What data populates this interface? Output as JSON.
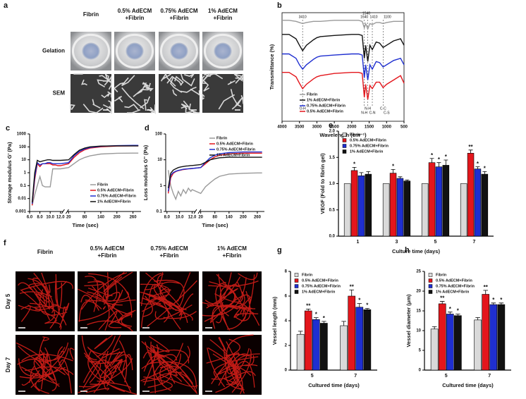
{
  "figure_a": {
    "panel_label": "a",
    "columns": [
      [
        "Fibrin"
      ],
      [
        "0.5% AdECM",
        "+Fibrin"
      ],
      [
        "0.75% AdECM",
        "+Fibrin"
      ],
      [
        "1% AdECM",
        "+Fibrin"
      ]
    ],
    "rows": [
      "Gelation",
      "SEM"
    ]
  },
  "figure_f": {
    "panel_label": "f",
    "columns": [
      [
        "Fibrin"
      ],
      [
        "0.5% AdECM",
        "+Fibrin"
      ],
      [
        "0.75% AdECM",
        "+Fibrin"
      ],
      [
        "1% AdECM",
        "+Fibrin"
      ]
    ],
    "rows": [
      "Day 5",
      "Day 7"
    ]
  },
  "chart_data": [
    {
      "type": "line",
      "panel_label": "b",
      "frame": true,
      "x_label": "Wavelength (cm⁻¹)",
      "y_label": "Transmittance (%)",
      "x": [
        4000,
        3800,
        3600,
        3500,
        3410,
        3300,
        3100,
        3000,
        2900,
        2500,
        2000,
        1800,
        1700,
        1640,
        1600,
        1540,
        1480,
        1410,
        1300,
        1200,
        1100,
        1000,
        800,
        600,
        500
      ],
      "xlim": [
        4000,
        500
      ],
      "xticks": [
        4000,
        3500,
        3000,
        2500,
        2000,
        1500,
        1000,
        500
      ],
      "ylim": [
        0,
        100
      ],
      "legend": "lower left",
      "series": [
        {
          "name": "Fibrin",
          "color": "#9a9a9a",
          "values": [
            93,
            93,
            92,
            91,
            90,
            91,
            92,
            92,
            92,
            93,
            93,
            93,
            92,
            86,
            90,
            85,
            90,
            89,
            91,
            91,
            90,
            91,
            92,
            92,
            92
          ]
        },
        {
          "name": "1% AdECM+Fibrin",
          "color": "#111111",
          "values": [
            80,
            80,
            76,
            70,
            65,
            70,
            75,
            77,
            78,
            79,
            80,
            80,
            79,
            58,
            70,
            55,
            70,
            66,
            73,
            72,
            68,
            70,
            74,
            76,
            70
          ]
        },
        {
          "name": "0.75% AdECM+Fibrin",
          "color": "#1f2fd0",
          "values": [
            62,
            62,
            58,
            52,
            48,
            52,
            57,
            59,
            60,
            61,
            62,
            62,
            61,
            40,
            52,
            38,
            52,
            48,
            55,
            54,
            50,
            52,
            56,
            58,
            52
          ]
        },
        {
          "name": "0.5% AdECM+Fibrin",
          "color": "#e3161c",
          "values": [
            45,
            45,
            41,
            35,
            30,
            34,
            39,
            41,
            42,
            44,
            45,
            45,
            44,
            22,
            34,
            20,
            33,
            30,
            36,
            36,
            31,
            34,
            38,
            42,
            35
          ]
        }
      ],
      "peak_labels": [
        {
          "label": "3410",
          "x": 3410
        },
        {
          "label": "1640",
          "x": 1640
        },
        {
          "label": "1540",
          "x": 1540
        },
        {
          "label": "1410",
          "x": 1410
        },
        {
          "label": "1100",
          "x": 1100
        }
      ],
      "bond_labels": [
        {
          "label": "O-H",
          "x": 3410
        },
        {
          "label": "N-H",
          "x": 1640
        },
        {
          "label": "N-H",
          "x": 1540
        },
        {
          "label": "C-N",
          "x": 1410
        },
        {
          "label": "C-C",
          "x": 1100
        },
        {
          "label": "C-S",
          "x": 1000
        }
      ]
    },
    {
      "type": "line",
      "panel_label": "c",
      "x_label": "Time (sec)",
      "y_label": "Storage modulus G' (Pa)",
      "ylog": true,
      "x": [
        6.5,
        7,
        7.5,
        8,
        8.5,
        9,
        9.5,
        10,
        10.5,
        11,
        11.5,
        12,
        20,
        40,
        60,
        80,
        100,
        140,
        200,
        260,
        280
      ],
      "xlim": [
        6,
        290
      ],
      "xbreak": [
        12.5,
        15
      ],
      "xticks": [
        {
          "value": 6,
          "label": "6.0"
        },
        {
          "value": 8,
          "label": "8.0"
        },
        {
          "value": 10,
          "label": "10.0"
        },
        {
          "value": 12,
          "label": "12.0"
        },
        20,
        80,
        140,
        200,
        260
      ],
      "ylim": [
        0.001,
        1000
      ],
      "yticks": [
        0.001,
        0.01,
        0.1,
        1,
        10,
        100,
        1000
      ],
      "legend": "lower right",
      "series": [
        {
          "name": "Fibrin",
          "color": "#9a9a9a",
          "values": [
            0.003,
            0.02,
            0.1,
            0.5,
            0.1,
            0.08,
            0.08,
            0.08,
            2,
            2,
            2,
            2,
            2.5,
            5,
            10,
            15,
            20,
            28,
            32,
            33,
            33
          ]
        },
        {
          "name": "0.5% AdECM+Fibrin",
          "color": "#e3161c",
          "values": [
            0.003,
            0.3,
            5,
            3,
            5,
            5,
            5,
            5,
            4,
            4,
            3.5,
            3.5,
            5,
            15,
            35,
            60,
            80,
            100,
            115,
            120,
            120
          ]
        },
        {
          "name": "0.75% AdECM+Fibrin",
          "color": "#1f2fd0",
          "values": [
            0.004,
            0.5,
            6,
            4,
            5,
            5,
            6,
            6,
            5,
            5,
            5,
            5,
            6,
            20,
            45,
            70,
            90,
            110,
            125,
            130,
            130
          ]
        },
        {
          "name": "1% AdECM+Fibrin",
          "color": "#111111",
          "values": [
            0.005,
            1,
            9,
            7,
            8,
            9,
            10,
            10,
            9,
            9,
            9,
            9,
            10,
            25,
            55,
            80,
            100,
            115,
            120,
            120,
            120
          ]
        }
      ]
    },
    {
      "type": "line",
      "panel_label": "d",
      "x_label": "Time (sec)",
      "y_label": "Loss modulus G'' (Pa)",
      "ylog": true,
      "x": [
        8.2,
        8.6,
        9,
        9.4,
        9.8,
        10.2,
        10.6,
        11,
        11.4,
        11.8,
        12,
        20,
        40,
        60,
        80,
        100,
        140,
        200,
        260,
        280
      ],
      "xlim": [
        7.8,
        290
      ],
      "xbreak": [
        12.5,
        15
      ],
      "xticks": [
        {
          "value": 8,
          "label": "8.0"
        },
        {
          "value": 10,
          "label": "10.0"
        },
        {
          "value": 12,
          "label": "12.0"
        },
        20,
        80,
        140,
        200,
        260
      ],
      "ylim": [
        0.1,
        100
      ],
      "yticks": [
        0.1,
        1,
        10,
        100
      ],
      "legend": "upper right",
      "series": [
        {
          "name": "Fibrin",
          "color": "#9a9a9a",
          "values": [
            4,
            1,
            0.5,
            0.3,
            0.6,
            0.4,
            0.7,
            0.5,
            0.8,
            0.6,
            0.7,
            0.5,
            0.9,
            1.3,
            1.8,
            2.3,
            2.8,
            3,
            3.1,
            3.1
          ]
        },
        {
          "name": "0.5% AdECM+Fibrin",
          "color": "#e3161c",
          "values": [
            0.5,
            2,
            3,
            3.5,
            3.8,
            4,
            4.2,
            4.3,
            4.5,
            4.5,
            4.6,
            5,
            7,
            10,
            13,
            15,
            17,
            18,
            18,
            18
          ]
        },
        {
          "name": "0.75% AdECM+Fibrin",
          "color": "#1f2fd0",
          "values": [
            0.6,
            2.5,
            3.2,
            3.6,
            3.9,
            4.1,
            4.3,
            4.4,
            4.5,
            4.6,
            4.6,
            5,
            8,
            12,
            15,
            17,
            19,
            20,
            20,
            20
          ]
        },
        {
          "name": "1% AdECM+Fibrin",
          "color": "#111111",
          "values": [
            0.8,
            3,
            4,
            4.5,
            5,
            5.3,
            5.5,
            5.7,
            5.8,
            6,
            6,
            6.5,
            8,
            10,
            11,
            12,
            12.5,
            12.5,
            12.5,
            12.5
          ]
        }
      ]
    },
    {
      "type": "bar",
      "panel_label": "e",
      "x_label": "Culture time (days)",
      "y_label": "VEGF (Fold to fibrin gel)",
      "categories": [
        "1",
        "3",
        "5",
        "7"
      ],
      "ylim": [
        0,
        2
      ],
      "yticks": [
        {
          "value": 0,
          "label": "0.0"
        },
        0.5,
        {
          "value": 1,
          "label": "1.0"
        },
        1.5,
        {
          "value": 2,
          "label": "2.0"
        }
      ],
      "legend": "upper left",
      "series": [
        {
          "name": "Fibrin",
          "color": "#d9d9d9",
          "values": [
            1,
            1,
            1,
            1
          ]
        },
        {
          "name": "0.5% AdECM+Fibrin",
          "color": "#e3161c",
          "values": [
            1.25,
            1.2,
            1.4,
            1.58
          ],
          "errors": [
            0.06,
            0.07,
            0.08,
            0.06
          ],
          "significance": [
            "*",
            "*",
            "*",
            "**"
          ]
        },
        {
          "name": "0.75% AdECM+Fibrin",
          "color": "#1f2fd0",
          "values": [
            1.15,
            1.1,
            1.32,
            1.28
          ],
          "errors": [
            0.06,
            0.03,
            0.08,
            0.04
          ],
          "significance": [
            null,
            null,
            "*",
            "*"
          ]
        },
        {
          "name": "1% AdECM+Fibrin",
          "color": "#111111",
          "values": [
            1.18,
            1.05,
            1.35,
            1.18
          ],
          "errors": [
            0.05,
            0.02,
            0.1,
            0.05
          ],
          "significance": [
            null,
            null,
            "*",
            "*"
          ]
        }
      ]
    },
    {
      "type": "bar",
      "panel_label": "g",
      "x_label": "Cultured time (days)",
      "y_label": "Vessel length (mm)",
      "categories": [
        "5",
        "7"
      ],
      "ylim": [
        0,
        8
      ],
      "yticks": [
        0,
        2,
        4,
        6,
        8
      ],
      "legend": "upper left",
      "series": [
        {
          "name": "Fibrin",
          "color": "#d9d9d9",
          "values": [
            2.9,
            3.6
          ],
          "errors": [
            0.25,
            0.35
          ]
        },
        {
          "name": "0.5% AdECM+Fibrin",
          "color": "#e3161c",
          "values": [
            4.8,
            6.0
          ],
          "errors": [
            0.15,
            0.5
          ],
          "significance": [
            "**",
            "**"
          ]
        },
        {
          "name": "0.75% AdECM+Fibrin",
          "color": "#1f2fd0",
          "values": [
            4.1,
            5.1
          ],
          "errors": [
            0.15,
            0.3
          ],
          "significance": [
            "*",
            "*"
          ]
        },
        {
          "name": "1% AdECM+Fibrin",
          "color": "#111111",
          "values": [
            3.8,
            4.9
          ],
          "errors": [
            0.15,
            0.1
          ],
          "significance": [
            "*",
            "*"
          ]
        }
      ]
    },
    {
      "type": "bar",
      "panel_label": "h",
      "x_label": "Cultured time (days)",
      "y_label": "Vessel diameter (μm)",
      "categories": [
        "5",
        "7"
      ],
      "ylim": [
        0,
        25
      ],
      "yticks": [
        0,
        5,
        10,
        15,
        20,
        25
      ],
      "legend": "upper left",
      "series": [
        {
          "name": "Fibrin",
          "color": "#d9d9d9",
          "values": [
            10.4,
            12.7
          ],
          "errors": [
            0.6,
            0.6
          ]
        },
        {
          "name": "0.5% AdECM+Fibrin",
          "color": "#e3161c",
          "values": [
            16.8,
            19.2
          ],
          "errors": [
            0.6,
            1.0
          ],
          "significance": [
            "**",
            "**"
          ]
        },
        {
          "name": "0.75% AdECM+Fibrin",
          "color": "#1f2fd0",
          "values": [
            14.2,
            16.6
          ],
          "errors": [
            0.5,
            0.4
          ],
          "significance": [
            "*",
            "*"
          ]
        },
        {
          "name": "1% AdECM+Fibrin",
          "color": "#111111",
          "values": [
            13.8,
            16.6
          ],
          "errors": [
            0.4,
            0.4
          ],
          "significance": [
            "*",
            "*"
          ]
        }
      ]
    }
  ]
}
